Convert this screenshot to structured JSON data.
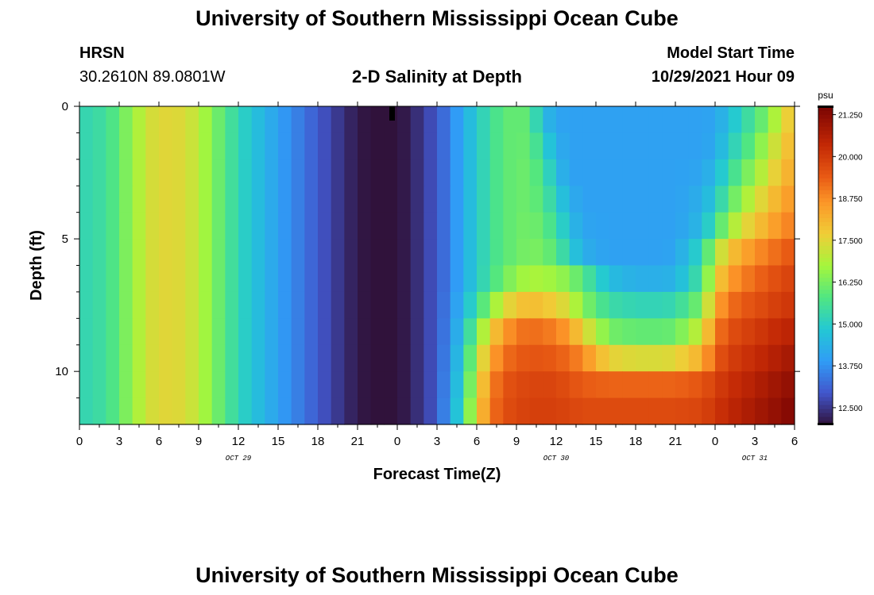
{
  "header": {
    "title_top": "University of Southern Mississippi Ocean Cube",
    "title_bottom": "University of Southern Mississippi Ocean Cube",
    "station_code": "HRSN",
    "station_coords": "30.2610N  89.0801W",
    "model_start_label": "Model Start Time",
    "model_start_value": "10/29/2021 Hour 09"
  },
  "chart_data": {
    "type": "heatmap",
    "title": "2-D Salinity at Depth",
    "xlabel": "Forecast Time(Z)",
    "ylabel": "Depth (ft)",
    "x_hours": [
      0,
      54
    ],
    "ylim": [
      0,
      12
    ],
    "x_tick_labels": [
      "0",
      "3",
      "6",
      "9",
      "12",
      "15",
      "18",
      "21",
      "0",
      "3",
      "6",
      "9",
      "12",
      "15",
      "18",
      "21",
      "0",
      "3",
      "6"
    ],
    "y_tick_labels": [
      "0",
      "5",
      "10"
    ],
    "y_tick_values": [
      0,
      5,
      10
    ],
    "date_labels": [
      {
        "text": "OCT 29",
        "hour": 12
      },
      {
        "text": "OCT 30",
        "hour": 36
      },
      {
        "text": "OCT 31",
        "hour": 51
      }
    ],
    "colorbar": {
      "unit": "psu",
      "min": 12.0,
      "max": 21.5,
      "tick_labels": [
        "21.250",
        "20.000",
        "18.750",
        "17.500",
        "16.250",
        "15.000",
        "13.750",
        "12.500"
      ],
      "tick_values": [
        21.25,
        20.0,
        18.75,
        17.5,
        16.25,
        15.0,
        13.75,
        12.5
      ]
    },
    "depth_levels_ft": [
      0,
      0.5,
      1.5,
      2.5,
      3.5,
      4.5,
      5.5,
      6.5,
      7.5,
      8.5,
      9.5,
      10.5,
      11.5
    ],
    "time_knots_hours": [
      0,
      2,
      3,
      5,
      6,
      7,
      8,
      9,
      10,
      11,
      12,
      15,
      18,
      20,
      21,
      22,
      24,
      25,
      26,
      27,
      28,
      29,
      30,
      31,
      32,
      33,
      34,
      35,
      36,
      37,
      38,
      40,
      42,
      44,
      45,
      47,
      48,
      49,
      50,
      51,
      52,
      53,
      54
    ],
    "salinity_psu_by_depth": [
      [
        15.2,
        15.5,
        16.0,
        17.2,
        17.5,
        17.5,
        17.4,
        17.0,
        16.4,
        15.8,
        15.2,
        14.0,
        13.0,
        12.4,
        12.1,
        12.0,
        12.0,
        12.2,
        12.6,
        13.0,
        13.5,
        14.3,
        14.9,
        15.5,
        15.9,
        16.1,
        15.9,
        14.6,
        14.1,
        14.0,
        14.0,
        14.0,
        14.0,
        14.0,
        14.0,
        14.0,
        14.1,
        14.6,
        15.2,
        15.7,
        16.4,
        17.3,
        18.0
      ],
      [
        15.2,
        15.5,
        16.0,
        17.2,
        17.5,
        17.5,
        17.4,
        17.0,
        16.4,
        15.8,
        15.2,
        14.0,
        13.0,
        12.4,
        12.1,
        12.0,
        12.0,
        12.2,
        12.6,
        13.0,
        13.5,
        14.3,
        14.9,
        15.5,
        15.9,
        16.1,
        15.9,
        14.6,
        14.1,
        14.0,
        14.0,
        14.0,
        14.0,
        14.0,
        14.0,
        14.0,
        14.1,
        14.6,
        15.2,
        15.7,
        16.4,
        17.3,
        18.0
      ],
      [
        15.2,
        15.5,
        16.0,
        17.2,
        17.5,
        17.5,
        17.4,
        17.0,
        16.4,
        15.8,
        15.2,
        14.0,
        13.0,
        12.4,
        12.1,
        12.0,
        12.0,
        12.2,
        12.6,
        13.0,
        13.5,
        14.3,
        14.9,
        15.5,
        15.9,
        16.1,
        16.0,
        15.2,
        14.3,
        14.0,
        14.0,
        14.0,
        14.0,
        14.0,
        14.0,
        14.0,
        14.2,
        14.9,
        15.5,
        16.1,
        16.9,
        17.6,
        18.2
      ],
      [
        15.2,
        15.5,
        16.0,
        17.2,
        17.5,
        17.5,
        17.4,
        17.0,
        16.4,
        15.8,
        15.2,
        14.0,
        13.0,
        12.4,
        12.1,
        12.0,
        12.0,
        12.2,
        12.6,
        13.0,
        13.5,
        14.3,
        14.9,
        15.5,
        15.9,
        16.1,
        16.1,
        15.6,
        14.6,
        14.0,
        14.0,
        14.0,
        14.0,
        14.0,
        14.0,
        14.1,
        14.5,
        15.3,
        16.0,
        16.6,
        17.3,
        17.9,
        18.4
      ],
      [
        15.2,
        15.5,
        16.0,
        17.2,
        17.5,
        17.5,
        17.4,
        17.0,
        16.4,
        15.8,
        15.2,
        14.0,
        13.0,
        12.4,
        12.1,
        12.0,
        12.0,
        12.2,
        12.6,
        13.0,
        13.5,
        14.3,
        14.9,
        15.5,
        15.9,
        16.1,
        16.1,
        15.8,
        15.0,
        14.3,
        14.0,
        14.0,
        14.0,
        14.0,
        14.0,
        14.3,
        14.9,
        15.8,
        16.6,
        17.2,
        17.8,
        18.3,
        18.7
      ],
      [
        15.2,
        15.5,
        16.0,
        17.2,
        17.5,
        17.5,
        17.4,
        17.0,
        16.4,
        15.8,
        15.2,
        14.0,
        13.0,
        12.4,
        12.1,
        12.0,
        12.0,
        12.2,
        12.6,
        13.0,
        13.5,
        14.3,
        14.9,
        15.5,
        15.9,
        16.1,
        16.2,
        16.0,
        15.4,
        14.6,
        14.1,
        14.0,
        14.0,
        14.0,
        14.0,
        14.5,
        15.5,
        16.6,
        17.3,
        17.8,
        18.3,
        18.7,
        19.0
      ],
      [
        15.2,
        15.5,
        16.0,
        17.2,
        17.5,
        17.5,
        17.4,
        17.0,
        16.4,
        15.8,
        15.2,
        14.0,
        13.0,
        12.4,
        12.1,
        12.0,
        12.0,
        12.2,
        12.6,
        13.0,
        13.5,
        14.3,
        14.9,
        15.5,
        15.9,
        16.1,
        16.3,
        16.2,
        15.8,
        15.0,
        14.3,
        14.0,
        14.0,
        14.0,
        14.1,
        15.2,
        16.8,
        17.8,
        18.3,
        18.7,
        19.0,
        19.3,
        19.5
      ],
      [
        15.2,
        15.5,
        16.0,
        17.2,
        17.5,
        17.5,
        17.4,
        17.0,
        16.4,
        15.8,
        15.2,
        14.0,
        13.0,
        12.4,
        12.1,
        12.0,
        12.0,
        12.2,
        12.6,
        13.0,
        13.5,
        14.3,
        14.9,
        15.6,
        16.1,
        16.6,
        16.8,
        16.8,
        16.6,
        16.4,
        15.8,
        14.6,
        14.3,
        14.3,
        14.4,
        15.6,
        17.5,
        18.5,
        18.9,
        19.2,
        19.5,
        19.7,
        19.9
      ],
      [
        15.2,
        15.5,
        16.0,
        17.2,
        17.5,
        17.5,
        17.4,
        17.0,
        16.4,
        15.8,
        15.2,
        14.0,
        13.0,
        12.4,
        12.1,
        12.0,
        12.0,
        12.2,
        12.6,
        13.0,
        13.6,
        14.5,
        15.4,
        16.4,
        17.3,
        17.8,
        18.0,
        17.9,
        17.6,
        17.3,
        16.4,
        15.4,
        15.2,
        15.2,
        15.3,
        16.3,
        18.3,
        19.1,
        19.4,
        19.6,
        19.8,
        20.0,
        20.1
      ],
      [
        15.2,
        15.5,
        16.0,
        17.2,
        17.5,
        17.5,
        17.4,
        17.0,
        16.4,
        15.8,
        15.2,
        14.0,
        13.0,
        12.4,
        12.1,
        12.0,
        12.0,
        12.2,
        12.6,
        13.0,
        13.7,
        14.8,
        16.2,
        17.6,
        18.5,
        19.0,
        19.2,
        19.1,
        18.9,
        18.5,
        17.6,
        16.2,
        16.0,
        16.0,
        16.1,
        17.2,
        18.9,
        19.6,
        19.8,
        20.0,
        20.2,
        20.4,
        20.5
      ],
      [
        15.2,
        15.5,
        16.0,
        17.2,
        17.5,
        17.5,
        17.4,
        17.0,
        16.4,
        15.8,
        15.2,
        14.0,
        13.0,
        12.4,
        12.1,
        12.0,
        12.0,
        12.2,
        12.6,
        13.0,
        13.8,
        15.1,
        16.8,
        18.3,
        19.1,
        19.4,
        19.5,
        19.5,
        19.4,
        19.2,
        18.8,
        17.6,
        17.4,
        17.4,
        17.5,
        18.2,
        19.4,
        19.9,
        20.1,
        20.3,
        20.5,
        20.7,
        20.9
      ],
      [
        15.2,
        15.5,
        16.0,
        17.2,
        17.5,
        17.5,
        17.4,
        17.0,
        16.4,
        15.8,
        15.2,
        14.0,
        13.0,
        12.4,
        12.1,
        12.0,
        12.0,
        12.2,
        12.6,
        13.0,
        13.9,
        15.3,
        17.2,
        18.8,
        19.5,
        19.7,
        19.8,
        19.8,
        19.8,
        19.6,
        19.4,
        19.3,
        19.3,
        19.3,
        19.3,
        19.5,
        19.9,
        20.2,
        20.4,
        20.6,
        20.8,
        21.0,
        21.2
      ],
      [
        15.2,
        15.5,
        16.0,
        17.2,
        17.5,
        17.5,
        17.4,
        17.0,
        16.4,
        15.8,
        15.2,
        14.0,
        13.0,
        12.4,
        12.1,
        12.0,
        12.0,
        12.2,
        12.6,
        13.0,
        14.0,
        15.5,
        17.5,
        19.0,
        19.6,
        19.8,
        19.9,
        19.9,
        19.9,
        19.8,
        19.7,
        19.7,
        19.7,
        19.7,
        19.7,
        19.8,
        20.1,
        20.4,
        20.6,
        20.8,
        21.0,
        21.2,
        21.4
      ]
    ]
  }
}
